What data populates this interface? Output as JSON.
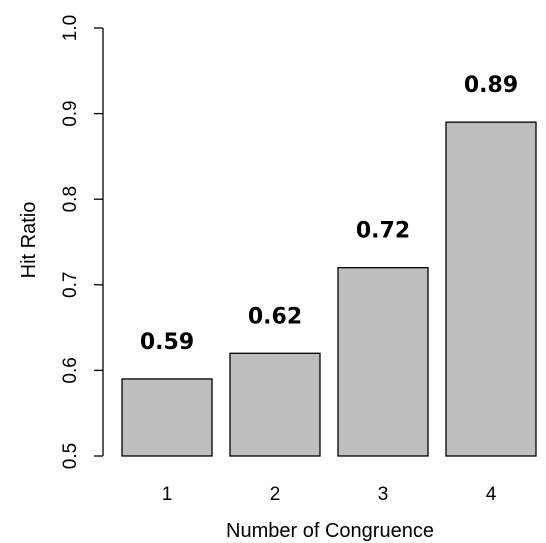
{
  "chart_data": {
    "type": "bar",
    "categories": [
      "1",
      "2",
      "3",
      "4"
    ],
    "values": [
      0.59,
      0.62,
      0.72,
      0.89
    ],
    "data_labels": [
      "0.59",
      "0.62",
      "0.72",
      "0.89"
    ],
    "xlabel": "Number of Congruence",
    "ylabel": "Hit Ratio",
    "ylim": [
      0.5,
      1.0
    ],
    "yticks": [
      0.5,
      0.6,
      0.7,
      0.8,
      0.9,
      1.0
    ],
    "ytick_labels": [
      "0.5",
      "0.6",
      "0.7",
      "0.8",
      "0.9",
      "1.0"
    ],
    "bar_color": "#bebebe",
    "grid": false,
    "legend": "none"
  }
}
